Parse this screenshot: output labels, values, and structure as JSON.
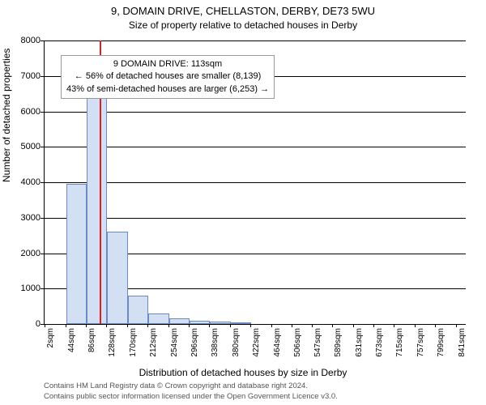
{
  "title_main": "9, DOMAIN DRIVE, CHELLASTON, DERBY, DE73 5WU",
  "title_sub": "Size of property relative to detached houses in Derby",
  "y_axis_label": "Number of detached properties",
  "x_axis_label": "Distribution of detached houses by size in Derby",
  "annotation": {
    "line1": "9 DOMAIN DRIVE: 113sqm",
    "line2": "← 56% of detached houses are smaller (8,139)",
    "line3": "43% of semi-detached houses are larger (6,253) →"
  },
  "footer_line1": "Contains HM Land Registry data © Crown copyright and database right 2024.",
  "footer_line2": "Contains public sector information licensed under the Open Government Licence v3.0.",
  "chart": {
    "type": "bar",
    "ylim": [
      0,
      8000
    ],
    "ytick_step": 1000,
    "y_ticks": [
      0,
      1000,
      2000,
      3000,
      4000,
      5000,
      6000,
      7000,
      8000
    ],
    "x_range_sqm": [
      0,
      860
    ],
    "x_tick_labels": [
      "2sqm",
      "44sqm",
      "86sqm",
      "128sqm",
      "170sqm",
      "212sqm",
      "254sqm",
      "296sqm",
      "338sqm",
      "380sqm",
      "422sqm",
      "464sqm",
      "506sqm",
      "547sqm",
      "589sqm",
      "631sqm",
      "673sqm",
      "715sqm",
      "757sqm",
      "799sqm",
      "841sqm"
    ],
    "x_tick_positions_sqm": [
      2,
      44,
      86,
      128,
      170,
      212,
      254,
      296,
      338,
      380,
      422,
      464,
      506,
      547,
      589,
      631,
      673,
      715,
      757,
      799,
      841
    ],
    "bar_fill": "#d3dff2",
    "bar_border": "#6a8bc4",
    "bar_width_sqm": 42,
    "marker_sqm": 113,
    "marker_color": "#d62222",
    "background_color": "#ffffff",
    "bars": [
      {
        "start_sqm": 44,
        "value": 3950
      },
      {
        "start_sqm": 86,
        "value": 6850
      },
      {
        "start_sqm": 128,
        "value": 2600
      },
      {
        "start_sqm": 170,
        "value": 800
      },
      {
        "start_sqm": 212,
        "value": 300
      },
      {
        "start_sqm": 254,
        "value": 150
      },
      {
        "start_sqm": 296,
        "value": 90
      },
      {
        "start_sqm": 338,
        "value": 60
      },
      {
        "start_sqm": 380,
        "value": 40
      }
    ]
  }
}
